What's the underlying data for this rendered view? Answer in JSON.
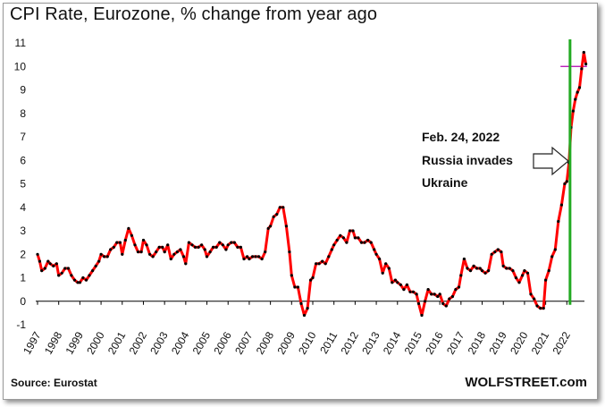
{
  "title": "CPI Rate, Eurozone, % change from year ago",
  "source": "Source: Eurostat",
  "brand": "WOLFSTREET.com",
  "annotation": {
    "lines": [
      "Feb. 24, 2022",
      "Russia invades",
      "Ukraine"
    ]
  },
  "colors": {
    "series": "#ff0000",
    "markers": "#000000",
    "event_line": "#22aa22",
    "reference_line": "#b000b0",
    "arrow_fill": "#ffffff"
  },
  "chart_data": {
    "type": "line",
    "title": "CPI Rate, Eurozone, % change from year ago",
    "xlabel": "",
    "ylabel": "",
    "xlim": [
      1997.0,
      2023.0
    ],
    "ylim": [
      -1,
      11
    ],
    "yticks": [
      -1,
      0,
      1,
      2,
      3,
      4,
      5,
      6,
      7,
      8,
      9,
      10,
      11
    ],
    "xtick_labels": [
      "1997",
      "1998",
      "1999",
      "2000",
      "2001",
      "2002",
      "2003",
      "2004",
      "2005",
      "2006",
      "2007",
      "2008",
      "2009",
      "2010",
      "2011",
      "2012",
      "2013",
      "2014",
      "2015",
      "2016",
      "2017",
      "2018",
      "2019",
      "2020",
      "2021",
      "2022"
    ],
    "grid": false,
    "markers": true,
    "event_line": {
      "x": 2022.15,
      "label": "Feb. 24, 2022"
    },
    "reference_line": {
      "y": 10.0,
      "x_from": 2021.7,
      "x_to": 2022.95
    },
    "series": [
      {
        "x": [
          1997.0,
          1997.1,
          1997.2,
          1997.35,
          1997.5,
          1997.6,
          1997.75,
          1997.9,
          1998.0,
          1998.15,
          1998.3,
          1998.45,
          1998.6,
          1998.75,
          1998.9,
          1999.0,
          1999.15,
          1999.3,
          1999.45,
          1999.6,
          1999.75,
          1999.9,
          2000.0,
          2000.15,
          2000.3,
          2000.45,
          2000.6,
          2000.75,
          2000.9,
          2001.0,
          2001.15,
          2001.3,
          2001.45,
          2001.6,
          2001.75,
          2001.9,
          2002.0,
          2002.15,
          2002.3,
          2002.45,
          2002.6,
          2002.75,
          2002.9,
          2003.0,
          2003.15,
          2003.3,
          2003.45,
          2003.6,
          2003.75,
          2003.9,
          2004.0,
          2004.15,
          2004.3,
          2004.45,
          2004.6,
          2004.75,
          2004.9,
          2005.0,
          2005.15,
          2005.3,
          2005.45,
          2005.6,
          2005.75,
          2005.9,
          2006.0,
          2006.15,
          2006.3,
          2006.45,
          2006.6,
          2006.75,
          2006.9,
          2007.0,
          2007.15,
          2007.3,
          2007.45,
          2007.6,
          2007.75,
          2007.9,
          2008.0,
          2008.15,
          2008.3,
          2008.45,
          2008.6,
          2008.75,
          2008.9,
          2009.0,
          2009.15,
          2009.3,
          2009.45,
          2009.6,
          2009.75,
          2009.9,
          2010.0,
          2010.15,
          2010.3,
          2010.45,
          2010.6,
          2010.75,
          2010.9,
          2011.0,
          2011.15,
          2011.3,
          2011.45,
          2011.6,
          2011.75,
          2011.9,
          2012.0,
          2012.15,
          2012.3,
          2012.45,
          2012.6,
          2012.75,
          2012.9,
          2013.0,
          2013.15,
          2013.3,
          2013.45,
          2013.6,
          2013.75,
          2013.9,
          2014.0,
          2014.15,
          2014.3,
          2014.45,
          2014.6,
          2014.75,
          2014.9,
          2015.0,
          2015.15,
          2015.3,
          2015.45,
          2015.6,
          2015.75,
          2015.9,
          2016.0,
          2016.15,
          2016.3,
          2016.45,
          2016.6,
          2016.75,
          2016.9,
          2017.0,
          2017.15,
          2017.3,
          2017.45,
          2017.6,
          2017.75,
          2017.9,
          2018.0,
          2018.15,
          2018.3,
          2018.45,
          2018.6,
          2018.75,
          2018.9,
          2019.0,
          2019.15,
          2019.3,
          2019.45,
          2019.6,
          2019.75,
          2019.9,
          2020.0,
          2020.15,
          2020.3,
          2020.45,
          2020.6,
          2020.75,
          2020.9,
          2021.0,
          2021.15,
          2021.3,
          2021.45,
          2021.6,
          2021.75,
          2021.9,
          2022.0,
          2022.1,
          2022.2,
          2022.3,
          2022.4,
          2022.5,
          2022.6,
          2022.7,
          2022.8,
          2022.9
        ],
        "y": [
          2.0,
          1.7,
          1.3,
          1.4,
          1.7,
          1.6,
          1.5,
          1.6,
          1.1,
          1.2,
          1.4,
          1.4,
          1.1,
          0.9,
          0.8,
          0.8,
          1.0,
          0.9,
          1.1,
          1.3,
          1.5,
          1.7,
          2.0,
          1.9,
          1.9,
          2.2,
          2.3,
          2.5,
          2.5,
          2.0,
          2.6,
          3.1,
          2.8,
          2.4,
          2.1,
          2.1,
          2.6,
          2.4,
          2.0,
          1.9,
          2.1,
          2.3,
          2.3,
          2.1,
          2.4,
          1.8,
          2.0,
          2.1,
          2.2,
          1.9,
          1.6,
          2.5,
          2.4,
          2.3,
          2.3,
          2.4,
          2.2,
          1.9,
          2.1,
          2.3,
          2.3,
          2.5,
          2.4,
          2.2,
          2.4,
          2.5,
          2.5,
          2.3,
          2.3,
          1.8,
          1.9,
          1.8,
          1.9,
          1.9,
          1.9,
          1.8,
          2.1,
          3.1,
          3.2,
          3.6,
          3.7,
          4.0,
          4.0,
          3.2,
          2.1,
          1.1,
          0.6,
          0.6,
          -0.1,
          -0.6,
          -0.3,
          0.9,
          1.0,
          1.6,
          1.6,
          1.7,
          1.6,
          1.9,
          2.2,
          2.4,
          2.6,
          2.8,
          2.7,
          2.5,
          3.0,
          3.0,
          2.7,
          2.7,
          2.5,
          2.5,
          2.6,
          2.5,
          2.2,
          2.0,
          1.8,
          1.2,
          1.6,
          1.4,
          0.8,
          0.9,
          0.8,
          0.7,
          0.5,
          0.7,
          0.4,
          0.4,
          0.3,
          -0.1,
          -0.6,
          0.0,
          0.5,
          0.3,
          0.3,
          0.2,
          0.3,
          -0.1,
          -0.2,
          0.1,
          0.2,
          0.5,
          0.6,
          1.1,
          1.8,
          1.4,
          1.3,
          1.5,
          1.4,
          1.4,
          1.3,
          1.2,
          1.3,
          2.0,
          2.1,
          2.2,
          2.1,
          1.5,
          1.4,
          1.4,
          1.3,
          1.0,
          0.8,
          1.1,
          1.3,
          1.2,
          0.3,
          0.1,
          -0.2,
          -0.3,
          -0.3,
          0.9,
          1.3,
          1.9,
          2.2,
          3.4,
          4.1,
          5.0,
          5.1,
          5.9,
          7.4,
          8.1,
          8.6,
          8.9,
          9.1,
          9.9,
          10.6,
          10.1
        ]
      }
    ]
  }
}
